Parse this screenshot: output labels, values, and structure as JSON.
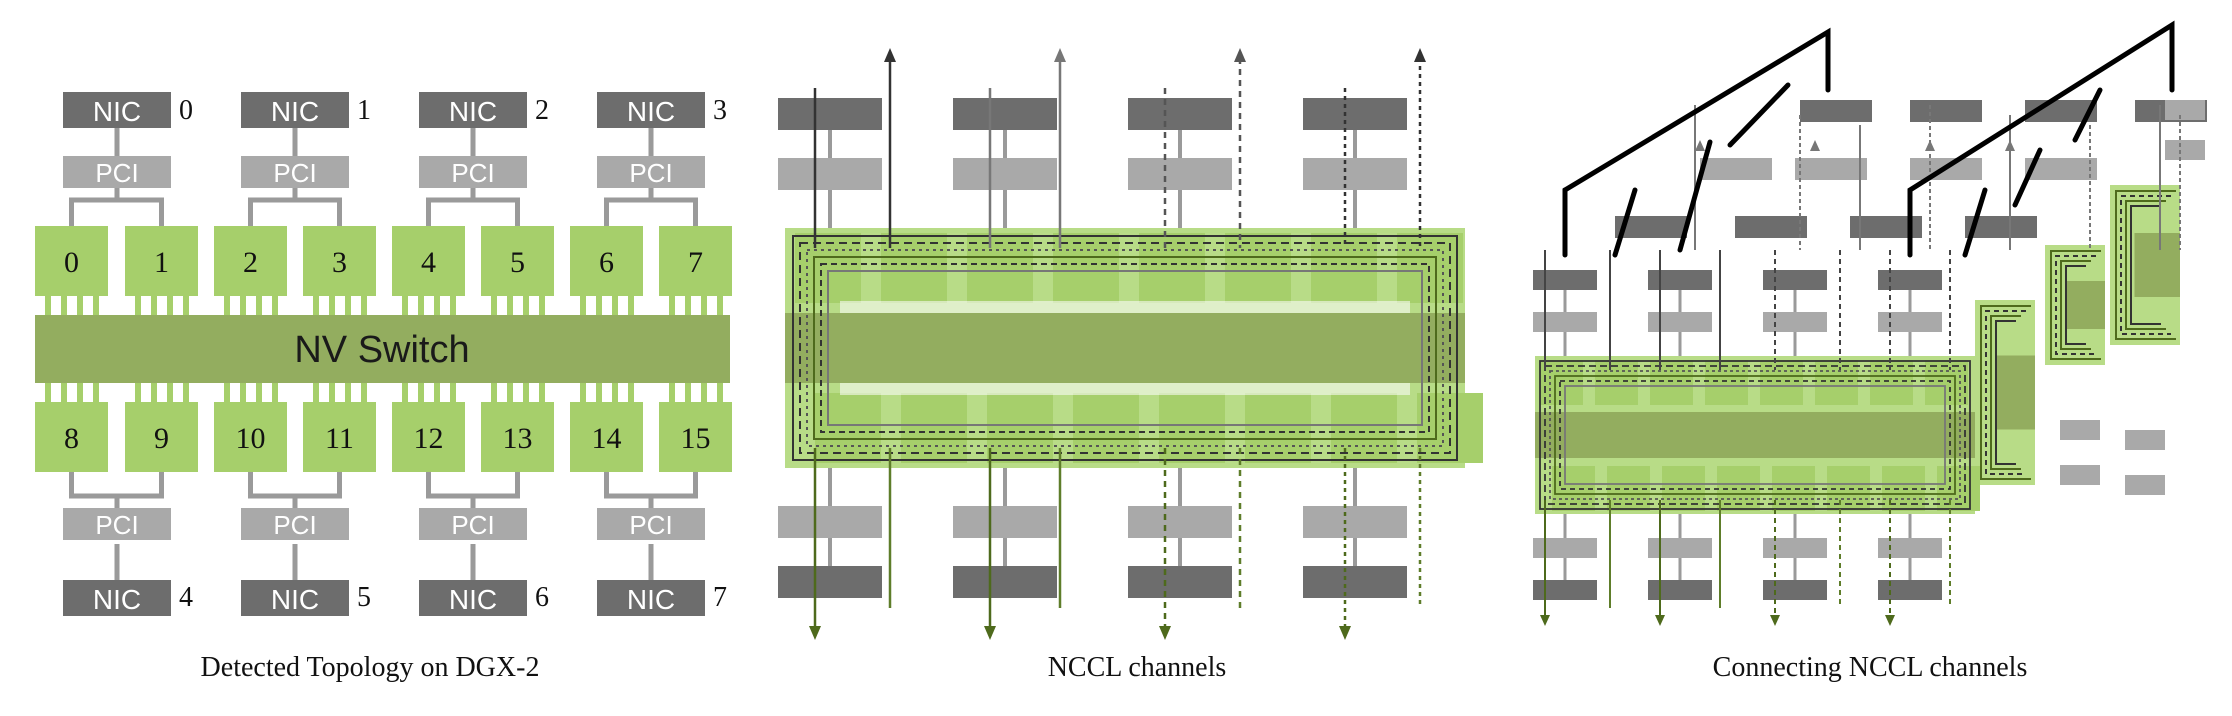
{
  "panels": [
    {
      "caption": "Detected Topology on DGX-2"
    },
    {
      "caption": "NCCL channels"
    },
    {
      "caption": "Connecting NCCL channels"
    }
  ],
  "topology": {
    "switch_label": "NV Switch",
    "nic_label": "NIC",
    "pci_label": "PCI",
    "gpus_top": [
      "0",
      "1",
      "2",
      "3",
      "4",
      "5",
      "6",
      "7"
    ],
    "gpus_bottom": [
      "8",
      "9",
      "10",
      "11",
      "12",
      "13",
      "14",
      "15"
    ],
    "nic_ids_top": [
      "0",
      "1",
      "2",
      "3"
    ],
    "nic_ids_bottom": [
      "4",
      "5",
      "6",
      "7"
    ]
  },
  "colors": {
    "gpu": "#a6cf6b",
    "switch": "#93ad5f",
    "pci": "#a9a9a9",
    "nic": "#6d6d6d",
    "connector": "#9a9a9a",
    "green_line": "#4e6a1c",
    "dark_line": "#333333",
    "thick_line": "#000000"
  }
}
